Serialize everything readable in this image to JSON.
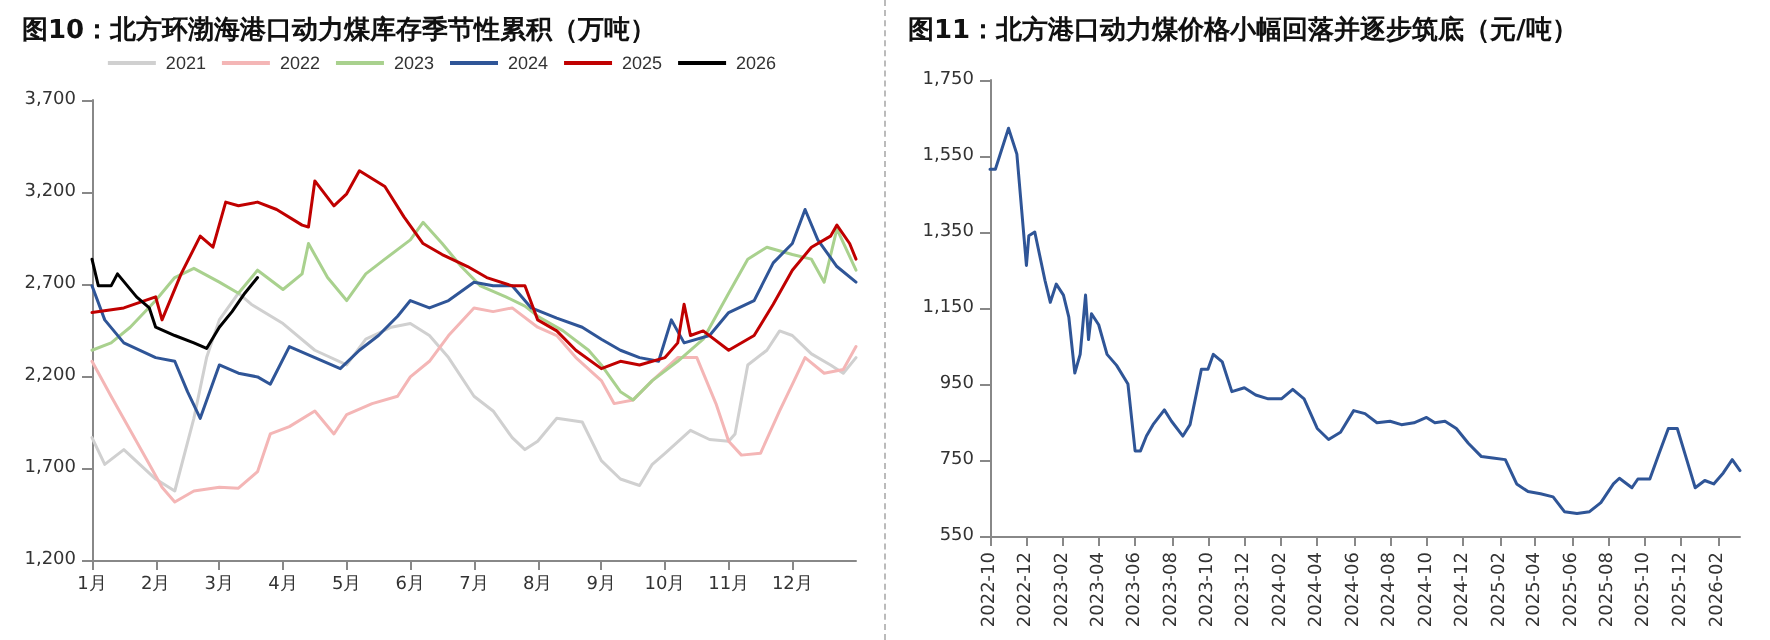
{
  "chart_data": [
    {
      "type": "line",
      "title": "图10：北方环渤海港口动力煤库存季节性累积（万吨）",
      "legend": "top",
      "grid": false,
      "marker": "none",
      "line_style": "solid",
      "xlim": [
        1,
        13
      ],
      "xticks": [
        {
          "value": 1,
          "label": "1月"
        },
        {
          "value": 2,
          "label": "2月"
        },
        {
          "value": 3,
          "label": "3月"
        },
        {
          "value": 4,
          "label": "4月"
        },
        {
          "value": 5,
          "label": "5月"
        },
        {
          "value": 6,
          "label": "6月"
        },
        {
          "value": 7,
          "label": "7月"
        },
        {
          "value": 8,
          "label": "8月"
        },
        {
          "value": 9,
          "label": "9月"
        },
        {
          "value": 10,
          "label": "10月"
        },
        {
          "value": 11,
          "label": "11月"
        },
        {
          "value": 12,
          "label": "12月"
        }
      ],
      "ylim": [
        1200,
        3700
      ],
      "yticks": [
        {
          "value": 1200,
          "label": "1,200"
        },
        {
          "value": 1700,
          "label": "1,700"
        },
        {
          "value": 2200,
          "label": "2,200"
        },
        {
          "value": 2700,
          "label": "2,700"
        },
        {
          "value": 3200,
          "label": "3,200"
        },
        {
          "value": 3700,
          "label": "3,700"
        }
      ],
      "series": [
        {
          "name": "2021",
          "color": "#d0d0d0",
          "x": [
            1,
            1.2,
            1.5,
            2,
            2.3,
            2.6,
            2.8,
            3,
            3.3,
            3.5,
            4,
            4.5,
            5,
            5.3,
            5.7,
            6,
            6.3,
            6.6,
            7,
            7.3,
            7.6,
            7.8,
            8,
            8.3,
            8.7,
            9,
            9.3,
            9.6,
            9.8,
            10,
            10.4,
            10.7,
            11,
            11.1,
            11.3,
            11.6,
            11.8,
            12,
            12.3,
            12.6,
            12.8,
            13
          ],
          "values": [
            1865,
            1720,
            1800,
            1640,
            1575,
            1970,
            2300,
            2505,
            2650,
            2590,
            2485,
            2340,
            2260,
            2400,
            2465,
            2485,
            2420,
            2300,
            2090,
            2010,
            1865,
            1800,
            1845,
            1970,
            1950,
            1740,
            1640,
            1605,
            1720,
            1780,
            1905,
            1855,
            1845,
            1885,
            2260,
            2340,
            2445,
            2420,
            2320,
            2260,
            2215,
            2300
          ]
        },
        {
          "name": "2022",
          "color": "#f4b6b6",
          "x": [
            1,
            1.3,
            1.6,
            1.9,
            2.1,
            2.3,
            2.6,
            3,
            3.3,
            3.6,
            3.8,
            4.1,
            4.5,
            4.8,
            5,
            5.4,
            5.8,
            6,
            6.3,
            6.6,
            7,
            7.3,
            7.6,
            8,
            8.3,
            8.6,
            9,
            9.2,
            9.5,
            9.8,
            10.2,
            10.5,
            10.8,
            11,
            11.2,
            11.5,
            11.8,
            12,
            12.2,
            12.5,
            12.8,
            13
          ],
          "values": [
            2280,
            2090,
            1905,
            1720,
            1595,
            1515,
            1575,
            1595,
            1590,
            1680,
            1885,
            1925,
            2010,
            1885,
            1990,
            2050,
            2090,
            2195,
            2280,
            2420,
            2570,
            2550,
            2570,
            2465,
            2420,
            2300,
            2175,
            2050,
            2070,
            2175,
            2300,
            2300,
            2050,
            1845,
            1770,
            1780,
            2010,
            2155,
            2300,
            2215,
            2235,
            2360
          ]
        },
        {
          "name": "2023",
          "color": "#a9d18e",
          "x": [
            1,
            1.3,
            1.6,
            2,
            2.3,
            2.6,
            3,
            3.3,
            3.6,
            4,
            4.3,
            4.4,
            4.7,
            5,
            5.3,
            5.6,
            6,
            6.2,
            6.5,
            6.8,
            7.1,
            7.5,
            7.8,
            8,
            8.4,
            8.8,
            9,
            9.3,
            9.5,
            9.8,
            10.2,
            10.6,
            11,
            11.3,
            11.6,
            12,
            12.3,
            12.5,
            12.7,
            13
          ],
          "values": [
            2340,
            2380,
            2465,
            2610,
            2735,
            2785,
            2710,
            2650,
            2775,
            2670,
            2755,
            2920,
            2735,
            2610,
            2755,
            2835,
            2940,
            3035,
            2920,
            2795,
            2690,
            2630,
            2580,
            2525,
            2445,
            2340,
            2260,
            2115,
            2070,
            2175,
            2280,
            2400,
            2650,
            2835,
            2900,
            2860,
            2835,
            2710,
            3000,
            2775
          ]
        },
        {
          "name": "2024",
          "color": "#2f5597",
          "x": [
            1,
            1.2,
            1.5,
            2,
            2.3,
            2.5,
            2.7,
            3,
            3.3,
            3.6,
            3.8,
            4.1,
            4.5,
            4.9,
            5.2,
            5.5,
            5.8,
            6,
            6.3,
            6.6,
            7,
            7.3,
            7.6,
            7.9,
            8.3,
            8.7,
            9,
            9.3,
            9.6,
            9.9,
            10.1,
            10.3,
            10.7,
            11,
            11.4,
            11.7,
            12,
            12.2,
            12.4,
            12.7,
            13
          ],
          "values": [
            2690,
            2505,
            2380,
            2300,
            2280,
            2115,
            1970,
            2260,
            2215,
            2195,
            2155,
            2360,
            2300,
            2240,
            2340,
            2420,
            2525,
            2610,
            2570,
            2610,
            2710,
            2690,
            2690,
            2570,
            2515,
            2465,
            2400,
            2340,
            2300,
            2280,
            2505,
            2380,
            2420,
            2545,
            2610,
            2815,
            2920,
            3105,
            2940,
            2795,
            2710
          ]
        },
        {
          "name": "2025",
          "color": "#c00000",
          "x": [
            1,
            1.5,
            2,
            2.1,
            2.4,
            2.7,
            2.9,
            3.1,
            3.3,
            3.6,
            3.9,
            4.3,
            4.4,
            4.5,
            4.8,
            5,
            5.2,
            5.6,
            5.9,
            6.2,
            6.5,
            6.9,
            7.2,
            7.6,
            7.8,
            8,
            8.3,
            8.6,
            9,
            9.3,
            9.6,
            10,
            10.2,
            10.3,
            10.4,
            10.6,
            11,
            11.4,
            11.7,
            12,
            12.3,
            12.6,
            12.7,
            12.9,
            13
          ],
          "values": [
            2545,
            2570,
            2630,
            2505,
            2755,
            2960,
            2900,
            3145,
            3125,
            3145,
            3105,
            3020,
            3010,
            3260,
            3125,
            3190,
            3315,
            3230,
            3065,
            2920,
            2860,
            2795,
            2735,
            2690,
            2690,
            2505,
            2445,
            2340,
            2240,
            2280,
            2260,
            2300,
            2380,
            2590,
            2420,
            2445,
            2340,
            2420,
            2590,
            2775,
            2900,
            2960,
            3020,
            2920,
            2835
          ]
        },
        {
          "name": "2026",
          "color": "#000000",
          "x": [
            1,
            1.1,
            1.3,
            1.4,
            1.7,
            1.9,
            2,
            2.3,
            2.6,
            2.8,
            3,
            3.2,
            3.4,
            3.6
          ],
          "values": [
            2835,
            2690,
            2690,
            2755,
            2630,
            2570,
            2465,
            2420,
            2380,
            2350,
            2465,
            2550,
            2650,
            2735
          ]
        }
      ]
    },
    {
      "type": "line",
      "title": "图11：北方港口动力煤价格小幅回落并逐步筑底（元/吨）",
      "legend": false,
      "grid": false,
      "marker": "none",
      "line_style": "solid",
      "xlim": [
        "2022-10-01",
        "2026-03-10"
      ],
      "xticks": [
        "2022-10",
        "2022-12",
        "2023-02",
        "2023-04",
        "2023-06",
        "2023-08",
        "2023-10",
        "2023-12",
        "2024-02",
        "2024-04",
        "2024-06",
        "2024-08",
        "2024-10",
        "2024-12",
        "2025-02",
        "2025-04",
        "2025-06",
        "2025-08",
        "2025-10",
        "2025-12",
        "2026-02"
      ],
      "ylim": [
        550,
        1750
      ],
      "yticks": [
        550,
        750,
        950,
        {
          "value": 1150,
          "label": "1,150"
        },
        {
          "value": 1350,
          "label": "1,350"
        },
        {
          "value": 1550,
          "label": "1,550"
        },
        {
          "value": 1750,
          "label": "1,750"
        }
      ],
      "series": [
        {
          "color": "#2f5597",
          "x": [
            "2022-10-01",
            "2022-10-10",
            "2022-11-01",
            "2022-11-15",
            "2022-12-01",
            "2022-12-05",
            "2022-12-15",
            "2023-01-01",
            "2023-01-10",
            "2023-01-20",
            "2023-02-01",
            "2023-02-10",
            "2023-02-20",
            "2023-03-01",
            "2023-03-10",
            "2023-03-15",
            "2023-03-20",
            "2023-04-01",
            "2023-04-15",
            "2023-05-01",
            "2023-05-20",
            "2023-06-01",
            "2023-06-10",
            "2023-06-20",
            "2023-07-01",
            "2023-07-20",
            "2023-08-01",
            "2023-08-20",
            "2023-09-01",
            "2023-09-20",
            "2023-10-01",
            "2023-10-10",
            "2023-10-25",
            "2023-11-10",
            "2023-12-01",
            "2023-12-20",
            "2024-01-10",
            "2024-02-01",
            "2024-02-20",
            "2024-03-10",
            "2024-04-01",
            "2024-04-20",
            "2024-05-10",
            "2024-06-01",
            "2024-06-20",
            "2024-07-10",
            "2024-08-01",
            "2024-08-20",
            "2024-09-10",
            "2024-10-01",
            "2024-10-15",
            "2024-11-01",
            "2024-11-20",
            "2024-12-10",
            "2025-01-01",
            "2025-01-20",
            "2025-02-10",
            "2025-03-01",
            "2025-03-20",
            "2025-04-10",
            "2025-05-01",
            "2025-05-20",
            "2025-06-10",
            "2025-07-01",
            "2025-07-20",
            "2025-08-10",
            "2025-08-20",
            "2025-09-10",
            "2025-09-20",
            "2025-10-10",
            "2025-10-25",
            "2025-11-10",
            "2025-11-25",
            "2025-12-10",
            "2025-12-25",
            "2026-01-10",
            "2026-01-25",
            "2026-02-10",
            "2026-02-25",
            "2026-03-10"
          ],
          "values": [
            1515,
            1515,
            1623,
            1555,
            1262,
            1340,
            1350,
            1223,
            1165,
            1213,
            1184,
            1126,
            979,
            1028,
            1184,
            1067,
            1135,
            1106,
            1028,
            999,
            950,
            774,
            774,
            813,
            843,
            882,
            852,
            813,
            843,
            989,
            989,
            1028,
            1008,
            930,
            940,
            921,
            911,
            911,
            936,
            911,
            833,
            804,
            823,
            880,
            872,
            848,
            852,
            843,
            848,
            862,
            848,
            852,
            833,
            794,
            759,
            755,
            751,
            687,
            667,
            661,
            653,
            614,
            609,
            614,
            638,
            687,
            702,
            677,
            700,
            700,
            765,
            833,
            833,
            755,
            677,
            696,
            687,
            716,
            751,
            722
          ]
        }
      ]
    }
  ]
}
